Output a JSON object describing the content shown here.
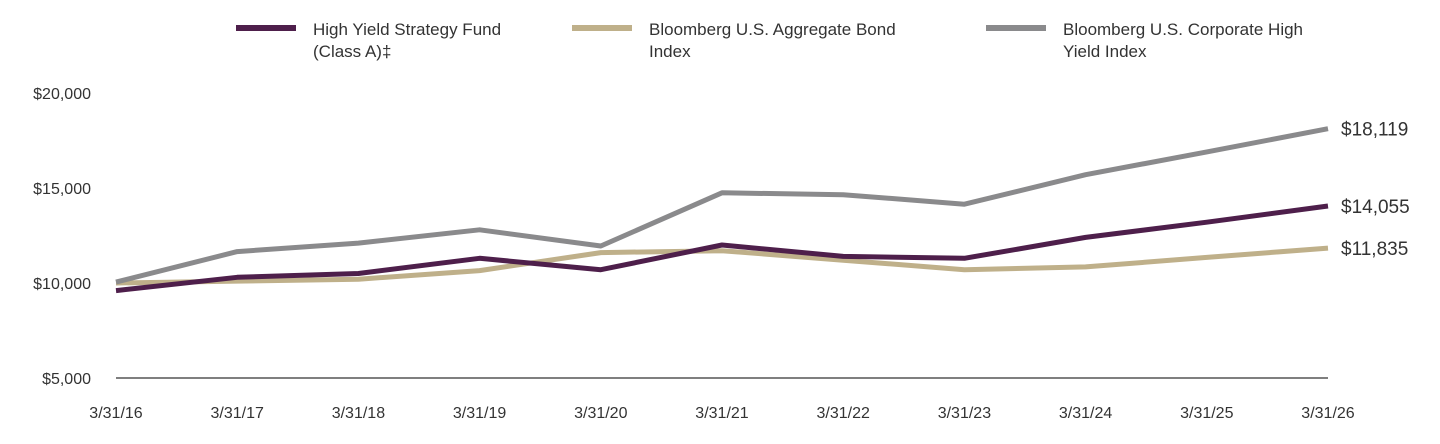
{
  "chart_data": {
    "type": "line",
    "x": [
      "3/31/16",
      "3/31/17",
      "3/31/18",
      "3/31/19",
      "3/31/20",
      "3/31/21",
      "3/31/22",
      "3/31/23",
      "3/31/24",
      "3/31/25",
      "3/31/26"
    ],
    "y_ticks": [
      "$5,000",
      "$10,000",
      "$15,000",
      "$20,000"
    ],
    "ylim": [
      5000,
      20000
    ],
    "legend_position": "top",
    "grid": false,
    "series": [
      {
        "name_lines": [
          "High Yield Strategy Fund",
          "(Class A)‡"
        ],
        "color": "#4e1f4b",
        "values": [
          9600,
          10300,
          10500,
          11300,
          10700,
          12000,
          11400,
          11300,
          12400,
          13200,
          14055
        ],
        "end_label": "$14,055"
      },
      {
        "name_lines": [
          "Bloomberg U.S. Aggregate Bond",
          "Index"
        ],
        "color": "#bfb08a",
        "values": [
          10000,
          10100,
          10200,
          10650,
          11600,
          11700,
          11200,
          10700,
          10850,
          11350,
          11835
        ],
        "end_label": "$11,835"
      },
      {
        "name_lines": [
          "Bloomberg U.S. Corporate High",
          "Yield Index"
        ],
        "color": "#8a8a8c",
        "values": [
          10050,
          11650,
          12100,
          12800,
          11950,
          14750,
          14650,
          14150,
          15700,
          16900,
          18119
        ],
        "end_label": "$18,119"
      }
    ]
  }
}
